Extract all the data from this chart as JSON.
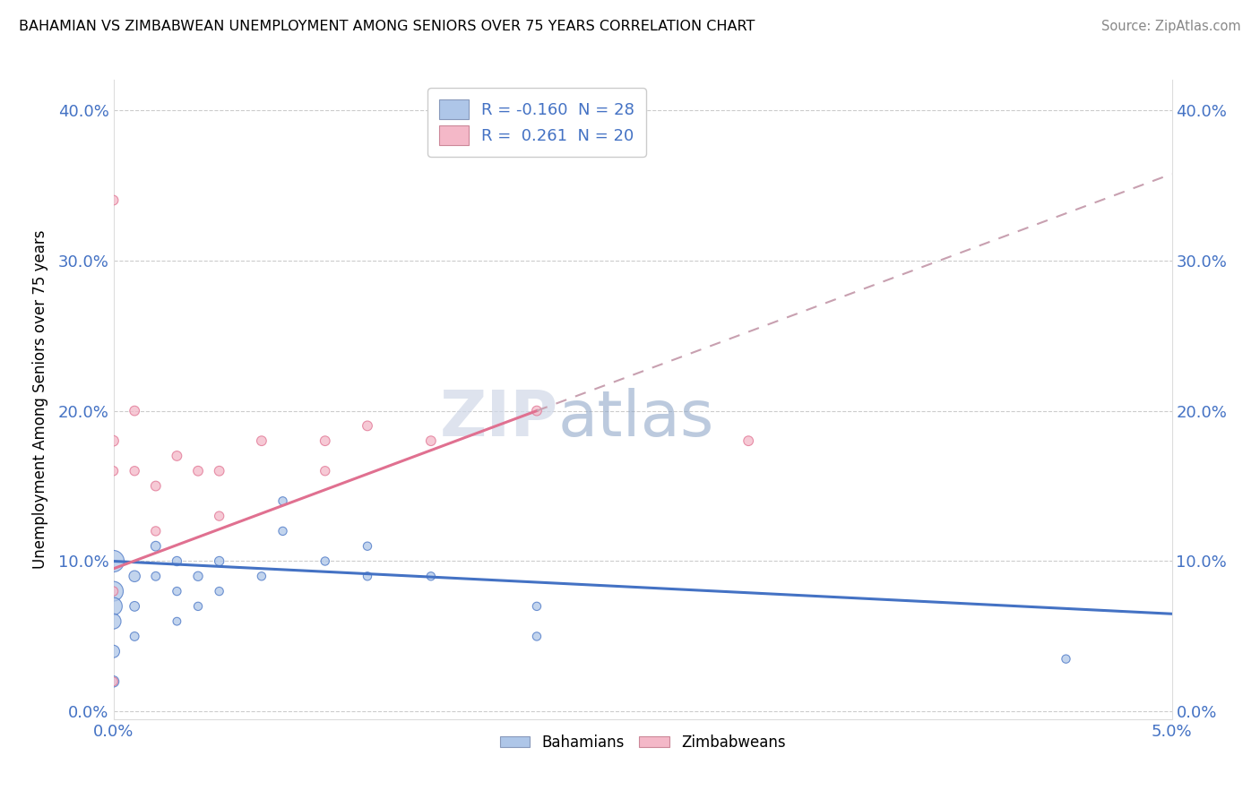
{
  "title": "BAHAMIAN VS ZIMBABWEAN UNEMPLOYMENT AMONG SENIORS OVER 75 YEARS CORRELATION CHART",
  "source": "Source: ZipAtlas.com",
  "ylabel": "Unemployment Among Seniors over 75 years",
  "xlim": [
    0.0,
    0.05
  ],
  "ylim": [
    -0.005,
    0.42
  ],
  "ytick_labels": [
    "0.0%",
    "10.0%",
    "20.0%",
    "30.0%",
    "40.0%"
  ],
  "ytick_values": [
    0.0,
    0.1,
    0.2,
    0.3,
    0.4
  ],
  "xtick_labels": [
    "0.0%",
    "5.0%"
  ],
  "xtick_values": [
    0.0,
    0.05
  ],
  "watermark": "ZIPatlas",
  "legend_label_1": "R = -0.160  N = 28",
  "legend_label_2": "R =  0.261  N = 20",
  "bahamian_color": "#aec6e8",
  "zimbabwean_color": "#f4b8c8",
  "blue_line_color": "#4472c4",
  "pink_line_color": "#e07090",
  "pink_dash_color": "#c8a0b0",
  "R_bahamian": -0.16,
  "N_bahamian": 28,
  "R_zimbabwean": 0.261,
  "N_zimbabwean": 20,
  "bahamian_x": [
    0.0,
    0.0,
    0.0,
    0.0,
    0.0,
    0.0,
    0.001,
    0.001,
    0.001,
    0.002,
    0.002,
    0.003,
    0.003,
    0.003,
    0.004,
    0.004,
    0.005,
    0.005,
    0.007,
    0.008,
    0.008,
    0.01,
    0.012,
    0.012,
    0.015,
    0.02,
    0.02,
    0.045
  ],
  "bahamian_y": [
    0.1,
    0.08,
    0.07,
    0.06,
    0.04,
    0.02,
    0.09,
    0.07,
    0.05,
    0.11,
    0.09,
    0.1,
    0.08,
    0.06,
    0.09,
    0.07,
    0.1,
    0.08,
    0.09,
    0.14,
    0.12,
    0.1,
    0.11,
    0.09,
    0.09,
    0.07,
    0.05,
    0.035
  ],
  "bahamian_sizes": [
    300,
    250,
    200,
    150,
    100,
    80,
    80,
    60,
    50,
    60,
    50,
    55,
    45,
    40,
    55,
    45,
    55,
    45,
    45,
    45,
    45,
    45,
    45,
    45,
    45,
    45,
    45,
    45
  ],
  "zimbabwean_x": [
    0.0,
    0.0,
    0.0,
    0.0,
    0.0,
    0.001,
    0.001,
    0.002,
    0.002,
    0.003,
    0.004,
    0.005,
    0.005,
    0.007,
    0.01,
    0.01,
    0.012,
    0.015,
    0.02,
    0.03
  ],
  "zimbabwean_y": [
    0.34,
    0.18,
    0.16,
    0.08,
    0.02,
    0.2,
    0.16,
    0.15,
    0.12,
    0.17,
    0.16,
    0.16,
    0.13,
    0.18,
    0.18,
    0.16,
    0.19,
    0.18,
    0.2,
    0.18
  ],
  "zimbabwean_sizes": [
    60,
    70,
    55,
    55,
    50,
    60,
    55,
    60,
    55,
    60,
    60,
    60,
    55,
    60,
    60,
    55,
    60,
    60,
    60,
    60
  ]
}
